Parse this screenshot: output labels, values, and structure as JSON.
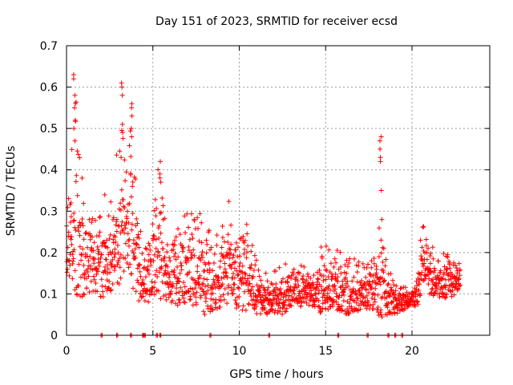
{
  "chart_data": {
    "type": "scatter",
    "title": "Day 151 of 2023, SRMTID for receiver ecsd",
    "xlabel": "GPS time / hours",
    "ylabel": "SRMTID / TECUs",
    "xlim": [
      0,
      24.5
    ],
    "ylim": [
      0,
      0.7
    ],
    "xticks": [
      0,
      5,
      10,
      15,
      20
    ],
    "yticks": [
      0,
      0.1,
      0.2,
      0.3,
      0.4,
      0.5,
      0.6,
      0.7
    ],
    "grid": true,
    "marker": "+",
    "color": "#ff0000",
    "envelope": [
      [
        0.0,
        0.12,
        0.3
      ],
      [
        0.3,
        0.13,
        0.48
      ],
      [
        0.5,
        0.1,
        0.62
      ],
      [
        0.8,
        0.09,
        0.4
      ],
      [
        1.2,
        0.1,
        0.34
      ],
      [
        1.6,
        0.1,
        0.33
      ],
      [
        2.0,
        0.09,
        0.3
      ],
      [
        2.4,
        0.1,
        0.38
      ],
      [
        2.8,
        0.12,
        0.38
      ],
      [
        3.1,
        0.12,
        0.6
      ],
      [
        3.5,
        0.14,
        0.38
      ],
      [
        3.8,
        0.12,
        0.56
      ],
      [
        4.1,
        0.07,
        0.3
      ],
      [
        4.5,
        0.08,
        0.2
      ],
      [
        5.0,
        0.08,
        0.28
      ],
      [
        5.3,
        0.09,
        0.42
      ],
      [
        5.8,
        0.07,
        0.25
      ],
      [
        6.5,
        0.07,
        0.27
      ],
      [
        7.0,
        0.08,
        0.3
      ],
      [
        7.5,
        0.06,
        0.33
      ],
      [
        8.0,
        0.05,
        0.28
      ],
      [
        8.5,
        0.06,
        0.24
      ],
      [
        9.0,
        0.07,
        0.26
      ],
      [
        9.4,
        0.08,
        0.33
      ],
      [
        9.8,
        0.05,
        0.28
      ],
      [
        10.3,
        0.06,
        0.32
      ],
      [
        11.0,
        0.05,
        0.2
      ],
      [
        11.7,
        0.05,
        0.15
      ],
      [
        12.5,
        0.05,
        0.17
      ],
      [
        13.2,
        0.07,
        0.18
      ],
      [
        14.0,
        0.07,
        0.16
      ],
      [
        14.8,
        0.05,
        0.22
      ],
      [
        15.5,
        0.05,
        0.21
      ],
      [
        16.2,
        0.05,
        0.2
      ],
      [
        17.0,
        0.06,
        0.18
      ],
      [
        17.8,
        0.06,
        0.2
      ],
      [
        18.2,
        0.04,
        0.3
      ],
      [
        18.6,
        0.05,
        0.16
      ],
      [
        19.2,
        0.05,
        0.12
      ],
      [
        19.8,
        0.07,
        0.12
      ],
      [
        20.3,
        0.07,
        0.14
      ],
      [
        20.6,
        0.1,
        0.3
      ],
      [
        21.0,
        0.1,
        0.22
      ],
      [
        21.6,
        0.09,
        0.2
      ],
      [
        22.2,
        0.09,
        0.2
      ],
      [
        22.8,
        0.11,
        0.19
      ]
    ],
    "spikes": [
      {
        "x": 0.45,
        "values": [
          0.55,
          0.58,
          0.62,
          0.63,
          0.52,
          0.5,
          0.47
        ]
      },
      {
        "x": 3.2,
        "values": [
          0.61,
          0.6,
          0.58,
          0.51,
          0.49,
          0.43
        ]
      },
      {
        "x": 3.8,
        "values": [
          0.56,
          0.55,
          0.53,
          0.5,
          0.48
        ]
      },
      {
        "x": 18.2,
        "values": [
          0.48,
          0.47,
          0.45,
          0.43,
          0.42,
          0.35,
          0.28,
          0.23
        ]
      },
      {
        "x": 5.4,
        "values": [
          0.42,
          0.39,
          0.37
        ]
      }
    ],
    "baseline_x": [
      2.0,
      2.9,
      3.7,
      4.4,
      4.5,
      5.2,
      5.4,
      8.3,
      11.7,
      15.7,
      17.4,
      18.6,
      19.0,
      19.4
    ]
  }
}
